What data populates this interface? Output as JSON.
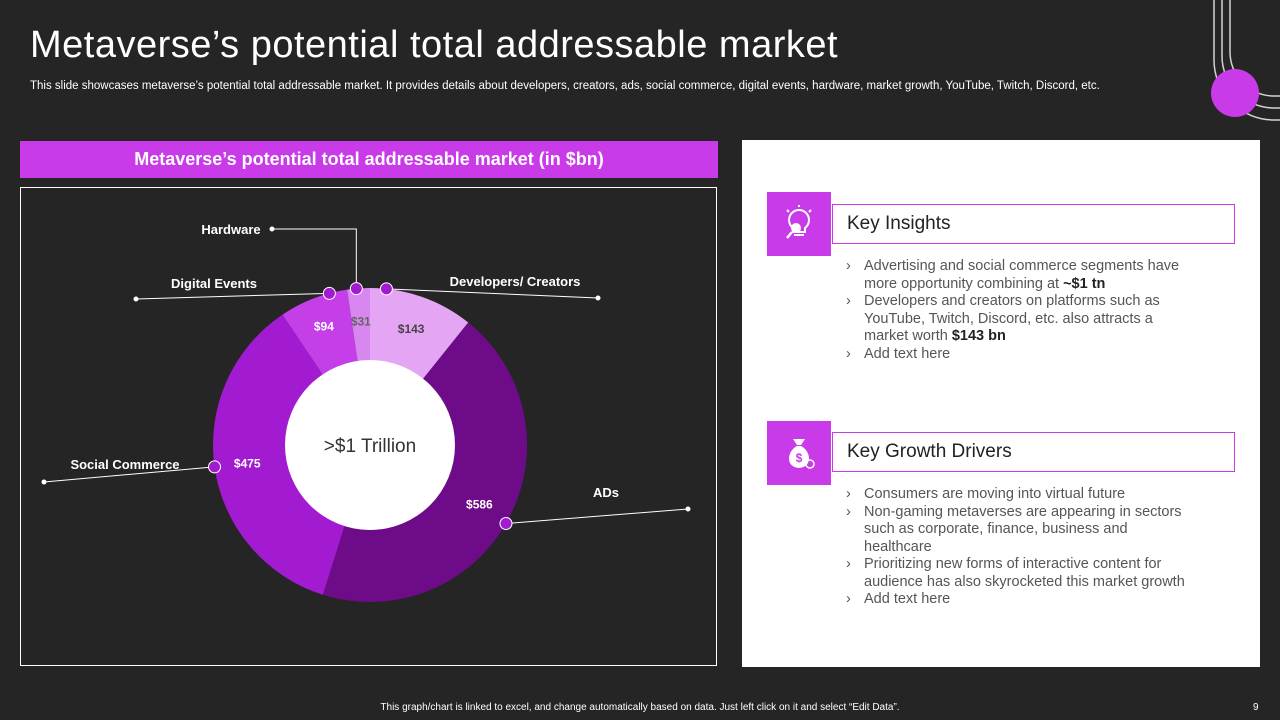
{
  "slide": {
    "title": "Metaverse’s potential total addressable market",
    "subtitle": "This slide showcases metaverse’s potential total addressable market. It provides details about developers, creators, ads, social commerce, digital events, hardware, market growth, YouTube, Twitch, Discord, etc.",
    "footer": "This graph/chart is linked to excel, and change automatically based on data. Just left click on it and select “Edit Data”.",
    "page_number": "9"
  },
  "chart_banner": "Metaverse’s potential total addressable market (in $bn)",
  "chart_data": {
    "type": "pie",
    "variant": "donut",
    "title": "Metaverse’s potential total addressable market (in $bn)",
    "center_label": ">$1 Trillion",
    "unit": "$bn",
    "categories": [
      "Developers/ Creators",
      "ADs",
      "Social Commerce",
      "Digital Events",
      "Hardware"
    ],
    "values": [
      143,
      586,
      475,
      94,
      31
    ],
    "value_labels": [
      "$143",
      "$586",
      "$475",
      "$94",
      "$31"
    ],
    "colors": [
      "#e4a5f5",
      "#6e0b88",
      "#a21bd0",
      "#c43fe8",
      "#d886f0"
    ],
    "label_colors": [
      "#444444",
      "#ffffff",
      "#ffffff",
      "#ffffff",
      "#666666"
    ]
  },
  "insights": {
    "heading": "Key Insights",
    "icon": "lightbulb-search-icon",
    "items": [
      {
        "pre": "Advertising and social commerce segments have more opportunity combining at ",
        "bold": "~$1 tn"
      },
      {
        "pre": "Developers and creators on platforms such as YouTube, Twitch, Discord, etc. also attracts a market worth ",
        "bold": "$143 bn"
      },
      {
        "pre": "Add text here",
        "bold": ""
      }
    ]
  },
  "drivers": {
    "heading": "Key Growth Drivers",
    "icon": "money-bag-icon",
    "items": [
      "Consumers are moving into virtual future",
      "Non-gaming metaverses are appearing in sectors such as corporate, finance, business and healthcare",
      "Prioritizing new forms of interactive content for audience has also skyrocketed this market growth",
      "Add text here"
    ]
  },
  "bullet_glyph": "›",
  "colors": {
    "accent": "#c93be8",
    "background": "#252525"
  }
}
